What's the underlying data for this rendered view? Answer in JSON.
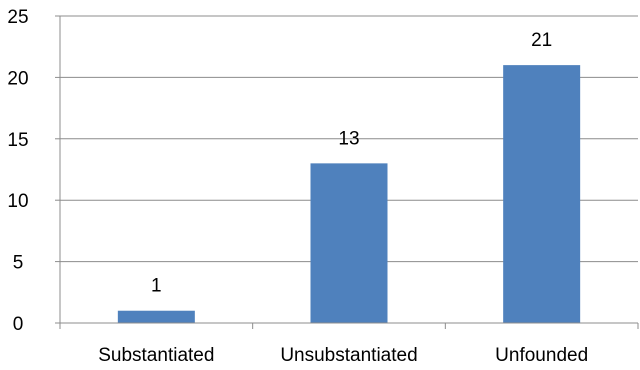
{
  "chart_data": {
    "type": "bar",
    "title": "",
    "xlabel": "",
    "ylabel": "",
    "categories": [
      "Substantiated",
      "Unsubstantiated",
      "Unfounded"
    ],
    "values": [
      1,
      13,
      21
    ],
    "data_labels": [
      "1",
      "13",
      "21"
    ],
    "y_ticks": [
      0,
      5,
      10,
      15,
      20,
      25
    ],
    "y_tick_labels": [
      "0",
      "5",
      "10",
      "15",
      "20",
      "25"
    ],
    "ylim": [
      0,
      25
    ],
    "grid": true,
    "legend": "none",
    "colors": {
      "bar": "#4F81BD",
      "grid": "#8C8C8C",
      "axis": "#8C8C8C",
      "text": "#000000"
    }
  }
}
